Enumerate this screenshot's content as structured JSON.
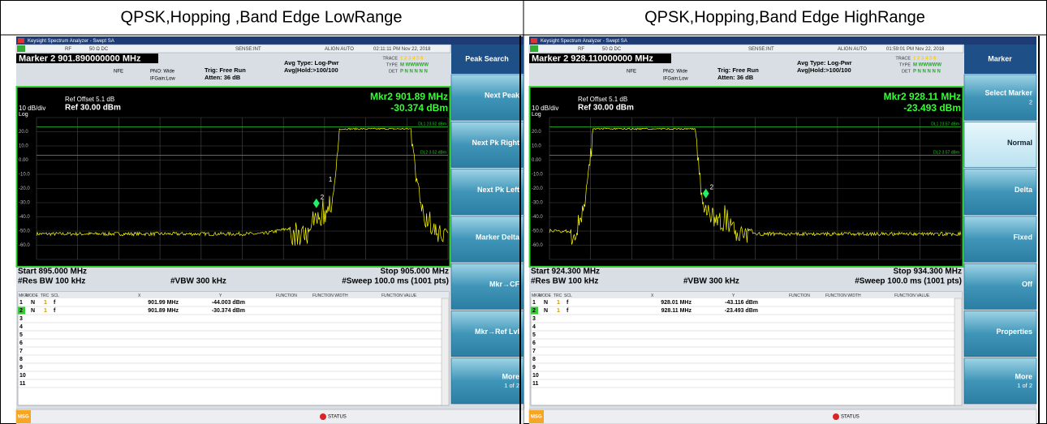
{
  "panels": [
    {
      "title": "QPSK,Hopping ,Band Edge LowRange",
      "window_title": "Keysight Spectrum Analyzer - Swept SA",
      "status_bar": [
        "RF",
        "50 Ω  DC",
        "SENSE:INT",
        "ALIGN AUTO",
        "02:11:11 PM Nov 22, 2018"
      ],
      "marker_label": "Marker 2 901.890000000 MHz",
      "settings": [
        "NFE",
        "PNO: Wide",
        "IFGain:Low",
        "Trig: Free Run",
        "Atten: 36 dB",
        "Avg Type: Log-Pwr",
        "Avg|Hold:>100/100"
      ],
      "trace_info": {
        "labels": [
          "TRACE",
          "TYPE",
          "DET"
        ],
        "values": [
          "1 2 3 4 5 6",
          "M WWWWW",
          "P N N N N N"
        ]
      },
      "ref_offset": "Ref Offset 5.1 dB",
      "scale": "10 dB/div",
      "ref_level": "Ref 30.00 dBm",
      "log": "Log",
      "marker_freq": "Mkr2 901.89 MHz",
      "marker_level": "-30.374 dBm",
      "y_labels": [
        "20.0",
        "10.0",
        "0.00",
        "-10.0",
        "-20.0",
        "-30.0",
        "-40.0",
        "-50.0",
        "-60.0"
      ],
      "display_lines": [
        "DL1 23.52 dBm",
        "DL2 3.52 dBm"
      ],
      "trace_markers": [
        "1",
        "2"
      ],
      "start": "Start 895.000 MHz",
      "stop": "Stop 905.000 MHz",
      "rbw": "#Res BW 100 kHz",
      "vbw": "#VBW 300 kHz",
      "sweep": "#Sweep  100.0 ms (1001 pts)",
      "table_header": [
        "MKR",
        "MODE",
        "TRC",
        "SCL",
        "X",
        "Y",
        "FUNCTION",
        "FUNCTION WIDTH",
        "FUNCTION VALUE"
      ],
      "table_rows": [
        [
          "1",
          "N",
          "1",
          "f",
          "901.99 MHz",
          "-44.003 dBm"
        ],
        [
          "2",
          "N",
          "1",
          "f",
          "901.89 MHz",
          "-30.374 dBm"
        ],
        [
          "3"
        ],
        [
          "4"
        ],
        [
          "5"
        ],
        [
          "6"
        ],
        [
          "7"
        ],
        [
          "8"
        ],
        [
          "9"
        ],
        [
          "10"
        ],
        [
          "11"
        ]
      ],
      "menu_title": "Peak Search",
      "softkeys": [
        {
          "label": "Next Peak"
        },
        {
          "label": "Next Pk Right"
        },
        {
          "label": "Next Pk Left"
        },
        {
          "label": "Marker Delta"
        },
        {
          "label": "Mkr→CF"
        },
        {
          "label": "Mkr→Ref Lvl"
        },
        {
          "label": "More",
          "sub": "1 of 2"
        }
      ],
      "msg": "MSG",
      "status": "STATUS"
    },
    {
      "title": "QPSK,Hopping,Band Edge HighRange",
      "window_title": "Keysight Spectrum Analyzer - Swept SA",
      "status_bar": [
        "RF",
        "50 Ω  DC",
        "SENSE:INT",
        "ALIGN AUTO",
        "01:59:01 PM Nov 22, 2018"
      ],
      "marker_label": "Marker 2 928.110000000 MHz",
      "settings": [
        "NFE",
        "PNO: Wide",
        "IFGain:Low",
        "Trig: Free Run",
        "Atten: 36 dB",
        "Avg Type: Log-Pwr",
        "Avg|Hold:>100/100"
      ],
      "trace_info": {
        "labels": [
          "TRACE",
          "TYPE",
          "DET"
        ],
        "values": [
          "1 2 3 4 5 6",
          "M WWWWW",
          "P N N N N N"
        ]
      },
      "ref_offset": "Ref Offset 5.1 dB",
      "scale": "10 dB/div",
      "ref_level": "Ref 30.00 dBm",
      "log": "Log",
      "marker_freq": "Mkr2 928.11 MHz",
      "marker_level": "-23.493 dBm",
      "y_labels": [
        "20.0",
        "10.0",
        "0.00",
        "-10.0",
        "-20.0",
        "-30.0",
        "-40.0",
        "-50.0",
        "-60.0"
      ],
      "display_lines": [
        "DL1 23.57 dBm",
        "DL2 3.57 dBm"
      ],
      "trace_markers": [
        "2"
      ],
      "start": "Start 924.300 MHz",
      "stop": "Stop 934.300 MHz",
      "rbw": "#Res BW 100 kHz",
      "vbw": "#VBW 300 kHz",
      "sweep": "#Sweep  100.0 ms (1001 pts)",
      "table_header": [
        "MKR",
        "MODE",
        "TRC",
        "SCL",
        "X",
        "Y",
        "FUNCTION",
        "FUNCTION WIDTH",
        "FUNCTION VALUE"
      ],
      "table_rows": [
        [
          "1",
          "N",
          "1",
          "f",
          "928.01 MHz",
          "-43.116 dBm"
        ],
        [
          "2",
          "N",
          "1",
          "f",
          "928.11 MHz",
          "-23.493 dBm"
        ],
        [
          "3"
        ],
        [
          "4"
        ],
        [
          "5"
        ],
        [
          "6"
        ],
        [
          "7"
        ],
        [
          "8"
        ],
        [
          "9"
        ],
        [
          "10"
        ],
        [
          "11"
        ]
      ],
      "menu_title": "Marker",
      "softkeys": [
        {
          "label": "Select Marker",
          "sub": "2"
        },
        {
          "label": "Normal"
        },
        {
          "label": "Delta"
        },
        {
          "label": "Fixed"
        },
        {
          "label": "Off"
        },
        {
          "label": "Properties"
        },
        {
          "label": "More",
          "sub": "1 of 2"
        }
      ],
      "msg": "MSG",
      "status": "STATUS"
    }
  ]
}
